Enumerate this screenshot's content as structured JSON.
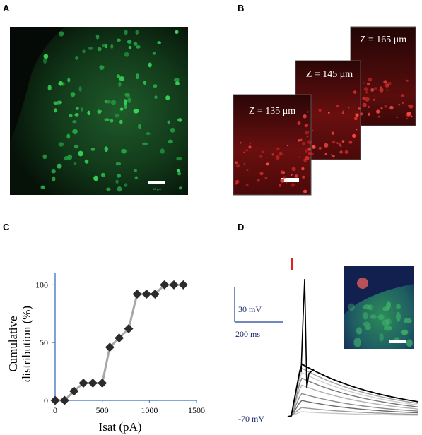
{
  "panels": {
    "a": {
      "label": "A",
      "scale_bar_text": "50 μm"
    },
    "b": {
      "label": "B",
      "slices": [
        {
          "depth_label": "Z = 135 μm"
        },
        {
          "depth_label": "Z = 145 μm"
        },
        {
          "depth_label": "Z = 165 μm"
        }
      ]
    },
    "c": {
      "label": "C"
    },
    "d": {
      "label": "D",
      "scale_voltage": "30 mV",
      "scale_time": "200 ms",
      "resting_label": "-70 mV"
    }
  },
  "chart_data": {
    "type": "line",
    "xlabel": "Isat (pA)",
    "ylabel": "Cumulative distribution (%)",
    "ylabel_lines": [
      "Cumulative",
      "distribution (%)"
    ],
    "xlim": [
      0,
      1500
    ],
    "ylim": [
      0,
      110
    ],
    "xticks": [
      0,
      500,
      1000,
      1500
    ],
    "yticks": [
      0,
      50,
      100
    ],
    "grid": false,
    "series": [
      {
        "marker": "diamond",
        "color": "#2b2b2b",
        "line_color": "#a8a8a8",
        "x": [
          0,
          100,
          200,
          300,
          400,
          500,
          580,
          680,
          780,
          870,
          970,
          1060,
          1160,
          1260,
          1360
        ],
        "y": [
          0,
          0,
          8,
          15,
          15,
          15,
          46,
          54,
          62,
          92,
          92,
          92,
          100,
          100,
          100
        ]
      }
    ]
  }
}
